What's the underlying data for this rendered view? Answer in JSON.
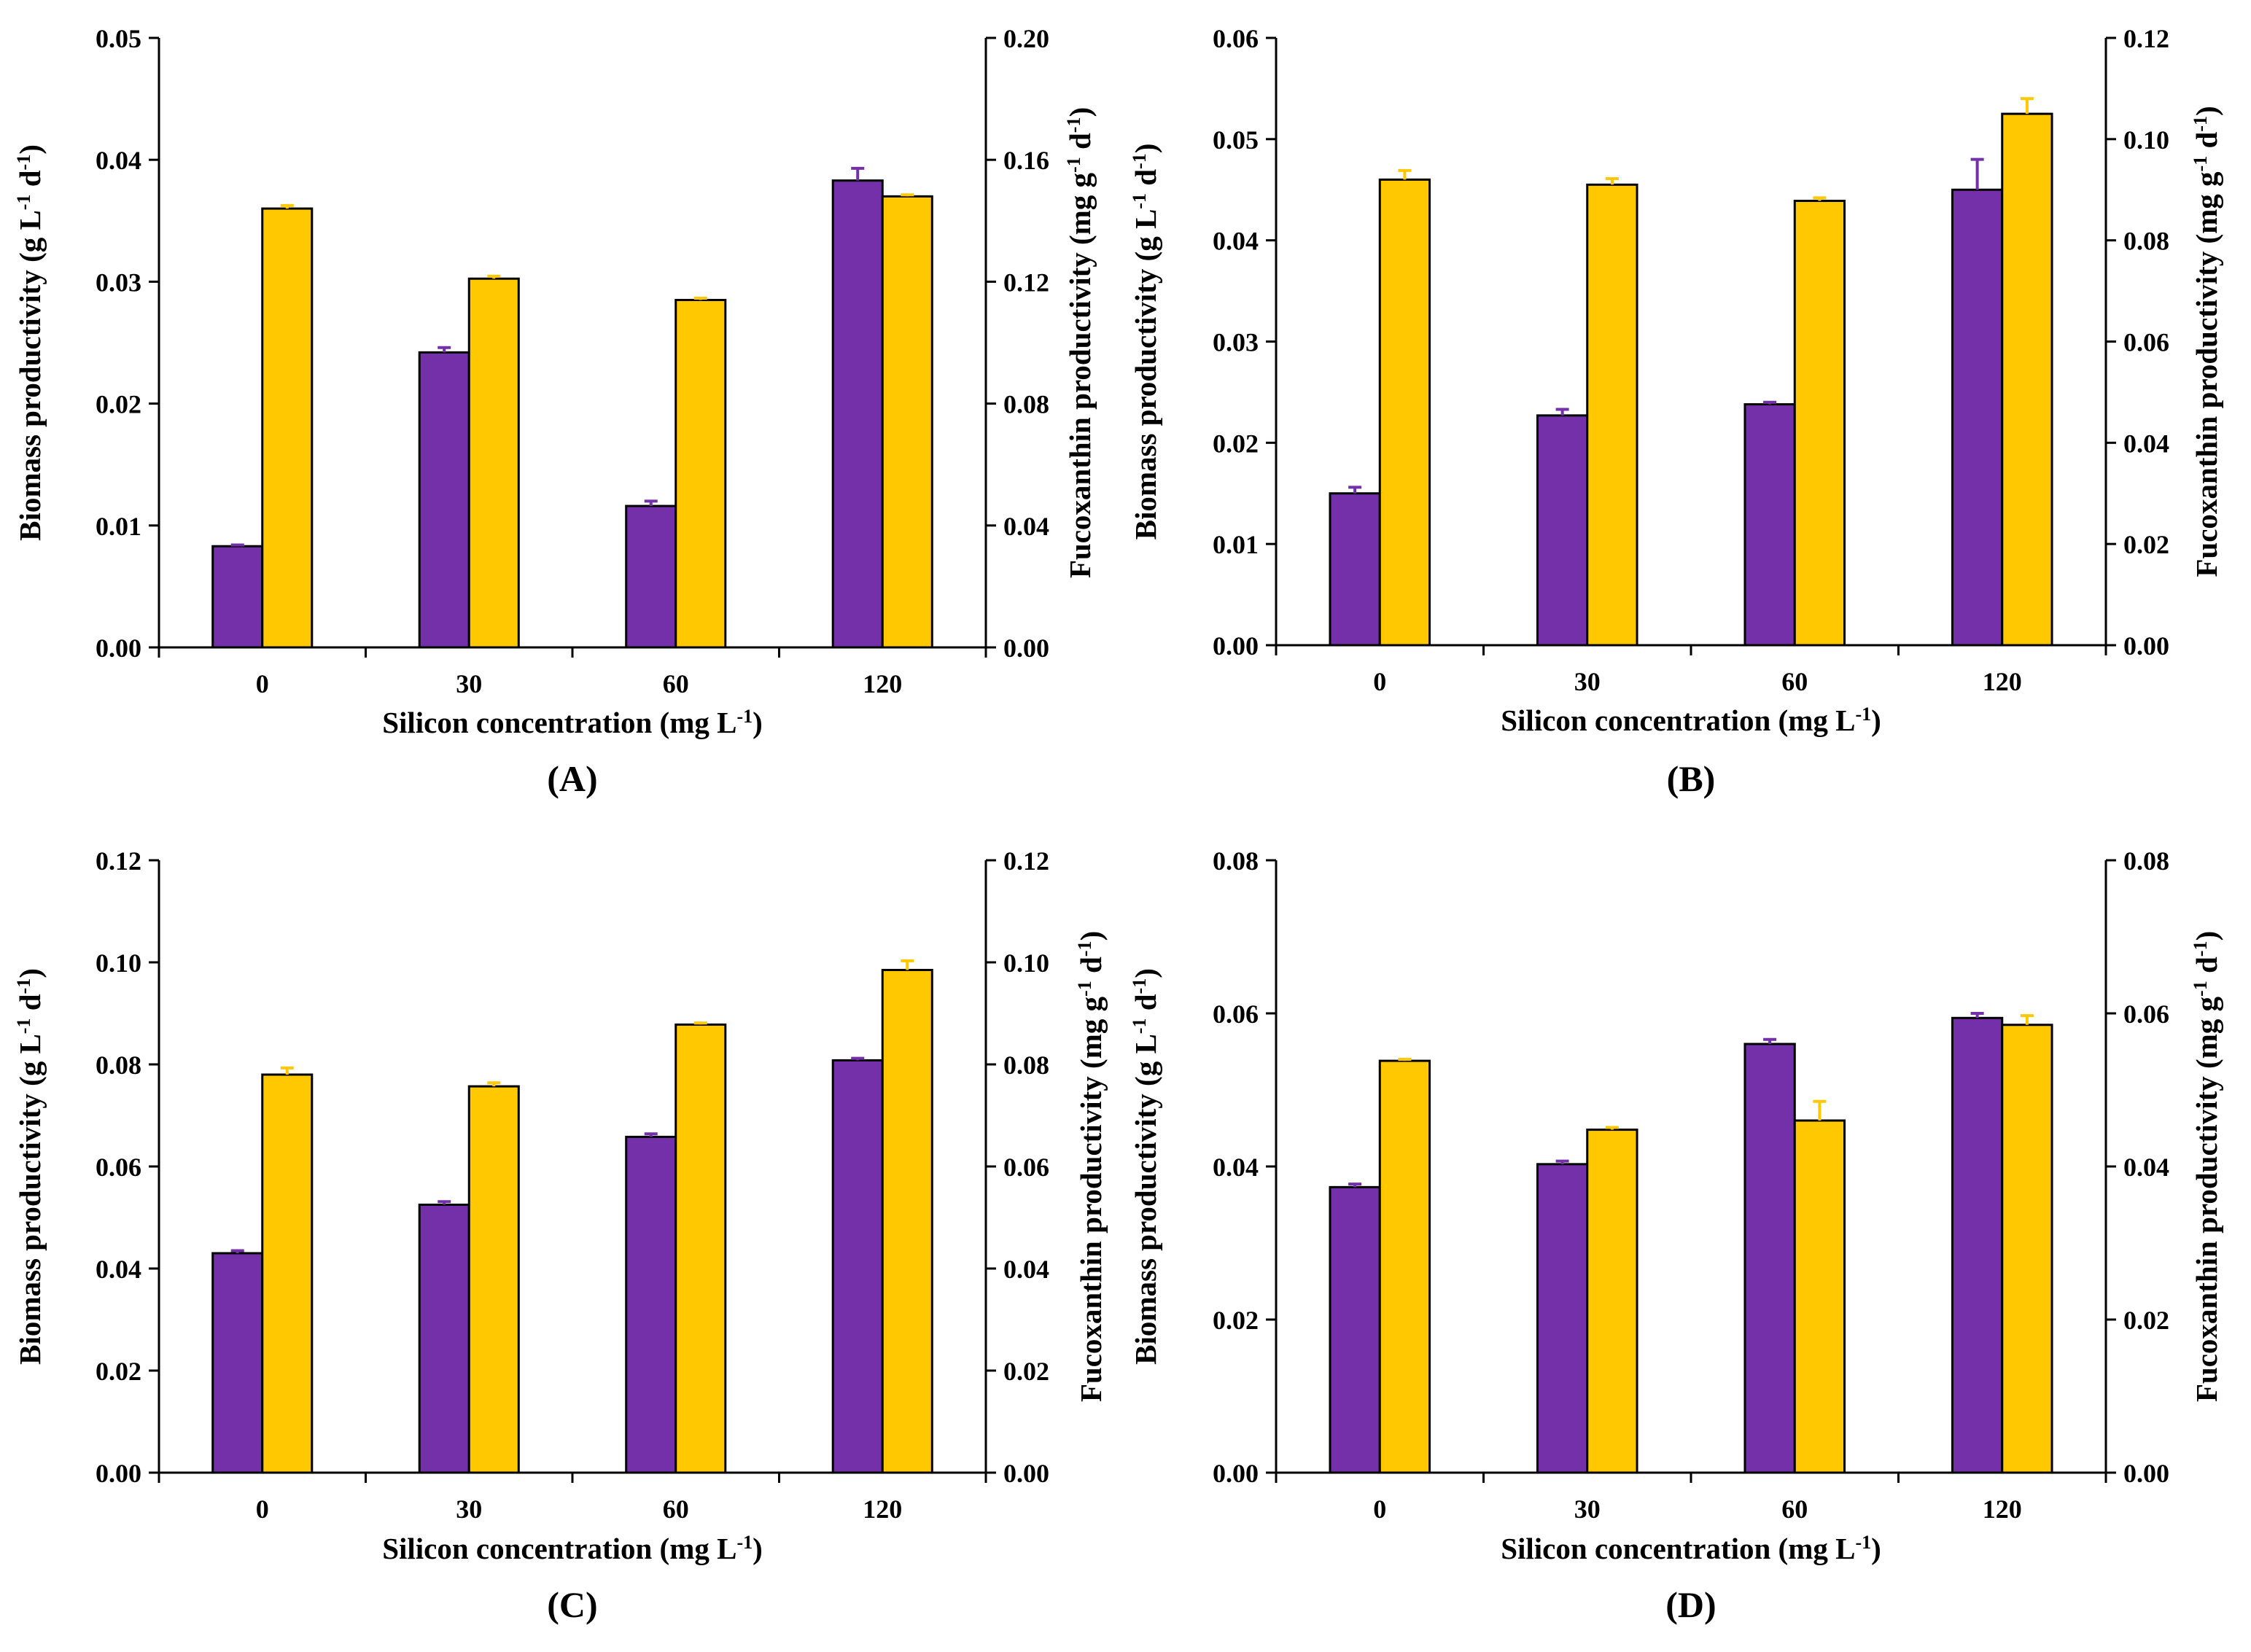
{
  "colors": {
    "biomass": "#7330a8",
    "fucoxanthin": "#ffc800",
    "axis": "#000000"
  },
  "chart_data": [
    {
      "type": "bar",
      "panel": "(A)",
      "categories": [
        "0",
        "30",
        "60",
        "120"
      ],
      "xlabel": "Silicon concentration (mg L",
      "xlabel_sup": "-1",
      "xlabel_end": ")",
      "ylabel": {
        "main": "Biomass productivity (g L",
        "sup1": "-1",
        "mid": " d",
        "sup2": "-1",
        "end": ")"
      },
      "y2label": {
        "main": "Fucoxanthin productivity (mg g",
        "sup1": "-1",
        "mid": " d",
        "sup2": "-1",
        "end": ")"
      },
      "ylim": [
        0,
        0.05
      ],
      "y_ticks": [
        "0.00",
        "0.01",
        "0.02",
        "0.03",
        "0.04",
        "0.05"
      ],
      "y2lim": [
        0,
        0.2
      ],
      "y2_ticks": [
        "0.00",
        "0.04",
        "0.08",
        "0.12",
        "0.16",
        "0.20"
      ],
      "series": [
        {
          "name": "Biomass productivity",
          "axis": "left",
          "values": [
            0.0083,
            0.0242,
            0.0116,
            0.0383
          ],
          "errors": [
            0.0001,
            0.0004,
            0.0004,
            0.001
          ]
        },
        {
          "name": "Fucoxanthin productivity",
          "axis": "right",
          "values": [
            0.144,
            0.121,
            0.114,
            0.148
          ],
          "errors": [
            0.001,
            0.0008,
            0.0006,
            0.0005
          ]
        }
      ]
    },
    {
      "type": "bar",
      "panel": "(B)",
      "categories": [
        "0",
        "30",
        "60",
        "120"
      ],
      "xlabel": "Silicon concentration (mg L",
      "xlabel_sup": "-1",
      "xlabel_end": ")",
      "ylabel": {
        "main": "Biomass productivity (g L",
        "sup1": "-1",
        "mid": " d",
        "sup2": "-1",
        "end": ")"
      },
      "y2label": {
        "main": "Fucoxanthin productivity (mg g",
        "sup1": "-1",
        "mid": " d",
        "sup2": "-1",
        "end": ")"
      },
      "ylim": [
        0,
        0.06
      ],
      "y_ticks": [
        "0.00",
        "0.01",
        "0.02",
        "0.03",
        "0.04",
        "0.05",
        "0.06"
      ],
      "y2lim": [
        0,
        0.12
      ],
      "y2_ticks": [
        "0.00",
        "0.02",
        "0.04",
        "0.06",
        "0.08",
        "0.10",
        "0.12"
      ],
      "series": [
        {
          "name": "Biomass productivity",
          "axis": "left",
          "values": [
            0.015,
            0.0227,
            0.0238,
            0.045
          ],
          "errors": [
            0.0006,
            0.0006,
            0.0002,
            0.003
          ]
        },
        {
          "name": "Fucoxanthin productivity",
          "axis": "right",
          "values": [
            0.092,
            0.091,
            0.0878,
            0.105
          ],
          "errors": [
            0.0018,
            0.0012,
            0.0006,
            0.003
          ]
        }
      ]
    },
    {
      "type": "bar",
      "panel": "(C)",
      "categories": [
        "0",
        "30",
        "60",
        "120"
      ],
      "xlabel": "Silicon concentration (mg L",
      "xlabel_sup": "-1",
      "xlabel_end": ")",
      "ylabel": {
        "main": "Biomass productivity (g L",
        "sup1": "-1",
        "mid": " d",
        "sup2": "-1",
        "end": ")"
      },
      "y2label": {
        "main": "Fucoxanthin productivity (mg g",
        "sup1": "-1",
        "mid": " d",
        "sup2": "-1",
        "end": ")"
      },
      "ylim": [
        0,
        0.12
      ],
      "y_ticks": [
        "0.00",
        "0.02",
        "0.04",
        "0.06",
        "0.08",
        "0.10",
        "0.12"
      ],
      "y2lim": [
        0,
        0.12
      ],
      "y2_ticks": [
        "0.00",
        "0.02",
        "0.04",
        "0.06",
        "0.08",
        "0.10",
        "0.12"
      ],
      "series": [
        {
          "name": "Biomass productivity",
          "axis": "left",
          "values": [
            0.043,
            0.0525,
            0.0658,
            0.0808
          ],
          "errors": [
            0.0005,
            0.0006,
            0.0006,
            0.0004
          ]
        },
        {
          "name": "Fucoxanthin productivity",
          "axis": "right",
          "values": [
            0.078,
            0.0757,
            0.0878,
            0.0985
          ],
          "errors": [
            0.0013,
            0.0007,
            0.0003,
            0.0018
          ]
        }
      ]
    },
    {
      "type": "bar",
      "panel": "(D)",
      "categories": [
        "0",
        "30",
        "60",
        "120"
      ],
      "xlabel": "Silicon concentration (mg L",
      "xlabel_sup": "-1",
      "xlabel_end": ")",
      "ylabel": {
        "main": "Biomass productivity (g L",
        "sup1": "-1",
        "mid": " d",
        "sup2": "-1",
        "end": ")"
      },
      "y2label": {
        "main": "Fucoxanthin productivity (mg g",
        "sup1": "-1",
        "mid": " d",
        "sup2": "-1",
        "end": ")"
      },
      "ylim": [
        0,
        0.08
      ],
      "y_ticks": [
        "0.00",
        "0.02",
        "0.04",
        "0.06",
        "0.08"
      ],
      "y2lim": [
        0,
        0.08
      ],
      "y2_ticks": [
        "0.00",
        "0.02",
        "0.04",
        "0.06",
        "0.08"
      ],
      "series": [
        {
          "name": "Biomass productivity",
          "axis": "left",
          "values": [
            0.0373,
            0.0403,
            0.056,
            0.0594
          ],
          "errors": [
            0.0004,
            0.0004,
            0.0006,
            0.0006
          ]
        },
        {
          "name": "Fucoxanthin productivity",
          "axis": "right",
          "values": [
            0.0538,
            0.0448,
            0.046,
            0.0585
          ],
          "errors": [
            0.0002,
            0.0003,
            0.0025,
            0.0012
          ]
        }
      ]
    }
  ]
}
